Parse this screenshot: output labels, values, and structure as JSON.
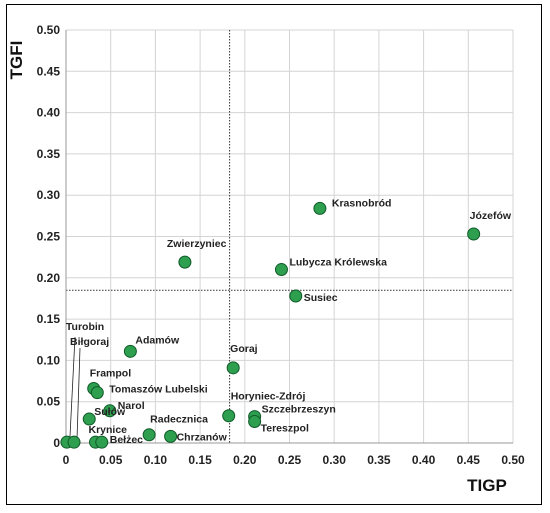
{
  "chart_data": {
    "type": "scatter",
    "xlabel": "TIGP",
    "ylabel": "TGFI",
    "xlim": [
      0,
      0.5
    ],
    "ylim": [
      0,
      0.5
    ],
    "x_ticks": [
      "0",
      "0.05",
      "0.10",
      "0.15",
      "0.20",
      "0.25",
      "0.30",
      "0.35",
      "0.40",
      "0.45",
      "0.50"
    ],
    "y_ticks": [
      "0",
      "0.05",
      "0.10",
      "0.15",
      "0.20",
      "0.25",
      "0.30",
      "0.35",
      "0.40",
      "0.45",
      "0.50"
    ],
    "grid": true,
    "reference_lines": {
      "x": 0.183,
      "y": 0.185
    },
    "marker_color": "#2e9e4f",
    "points": [
      {
        "label": "Krasnobród",
        "x": 0.284,
        "y": 0.284
      },
      {
        "label": "Józefów",
        "x": 0.456,
        "y": 0.253
      },
      {
        "label": "Zwierzyniec",
        "x": 0.133,
        "y": 0.219
      },
      {
        "label": "Lubycza Królewska",
        "x": 0.241,
        "y": 0.21
      },
      {
        "label": "Susiec",
        "x": 0.257,
        "y": 0.178
      },
      {
        "label": "Adamów",
        "x": 0.072,
        "y": 0.111
      },
      {
        "label": "Goraj",
        "x": 0.187,
        "y": 0.091
      },
      {
        "label": "Frampol",
        "x": 0.031,
        "y": 0.066
      },
      {
        "label": "Tomaszów Lubelski",
        "x": 0.035,
        "y": 0.061
      },
      {
        "label": "Narol",
        "x": 0.049,
        "y": 0.039
      },
      {
        "label": "Sułów",
        "x": 0.026,
        "y": 0.029
      },
      {
        "label": "Horyniec-Zdrój",
        "x": 0.182,
        "y": 0.033
      },
      {
        "label": "Szczebrzeszyn",
        "x": 0.211,
        "y": 0.032
      },
      {
        "label": "Tereszpol",
        "x": 0.211,
        "y": 0.026
      },
      {
        "label": "Radecznica",
        "x": 0.093,
        "y": 0.01
      },
      {
        "label": "Chrzanów",
        "x": 0.117,
        "y": 0.008
      },
      {
        "label": "Krynice",
        "x": 0.033,
        "y": 0.001
      },
      {
        "label": "Bełżec",
        "x": 0.04,
        "y": 0.001
      },
      {
        "label": "Turobin",
        "x": 0.001,
        "y": 0.001
      },
      {
        "label": "Biłgoraj",
        "x": 0.009,
        "y": 0.001
      }
    ]
  }
}
